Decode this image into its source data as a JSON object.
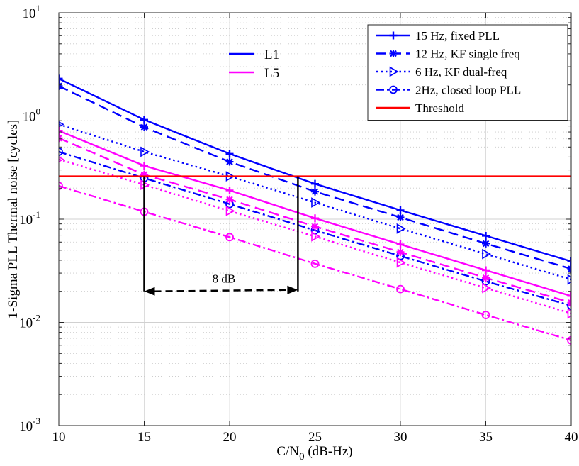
{
  "chart_data": {
    "type": "line",
    "xlabel": "C/N",
    "xlabel_sub": "0",
    "xlabel_suffix": " (dB-Hz)",
    "ylabel": "1-Sigma PLL  Thermal noise [cycles]",
    "xlim": [
      10,
      40
    ],
    "ylim": [
      0.001,
      10
    ],
    "yscale": "log",
    "grid": true,
    "x_ticks": [
      "10",
      "15",
      "20",
      "25",
      "30",
      "35",
      "40"
    ],
    "y_ticks": [
      {
        "base": "10",
        "exp": "-3",
        "value": 0.001
      },
      {
        "base": "10",
        "exp": "-2",
        "value": 0.01
      },
      {
        "base": "10",
        "exp": "-1",
        "value": 0.1
      },
      {
        "base": "10",
        "exp": "0",
        "value": 1
      },
      {
        "base": "10",
        "exp": "1",
        "value": 10
      }
    ],
    "x": [
      10,
      15,
      20,
      25,
      30,
      35,
      40
    ],
    "bands": [
      {
        "name": "L1",
        "color": "#0000ff"
      },
      {
        "name": "L5",
        "color": "#ff00ff"
      }
    ],
    "series": [
      {
        "name": "15 Hz, fixed PLL",
        "band": "L1",
        "color": "#0000ff",
        "dash": "solid",
        "marker": "plus",
        "values": [
          2.3,
          0.92,
          0.43,
          0.22,
          0.122,
          0.069,
          0.039
        ]
      },
      {
        "name": "12 Hz, KF single freq",
        "band": "L1",
        "color": "#0000ff",
        "dash": "dashed",
        "marker": "asterisk",
        "values": [
          1.95,
          0.78,
          0.36,
          0.185,
          0.104,
          0.058,
          0.033
        ]
      },
      {
        "name": "6 Hz, KF dual-freq",
        "band": "L1",
        "color": "#0000ff",
        "dash": "dotted",
        "marker": "triangle-right",
        "values": [
          0.83,
          0.45,
          0.26,
          0.145,
          0.081,
          0.046,
          0.026
        ]
      },
      {
        "name": "2Hz, closed loop PLL",
        "band": "L1",
        "color": "#0000ff",
        "dash": "dashdot",
        "marker": "circle",
        "values": [
          0.45,
          0.25,
          0.14,
          0.078,
          0.044,
          0.025,
          0.0145
        ]
      },
      {
        "name": "15 Hz, fixed PLL",
        "band": "L5",
        "color": "#ff00ff",
        "dash": "solid",
        "marker": "plus",
        "values": [
          0.72,
          0.33,
          0.19,
          0.102,
          0.057,
          0.032,
          0.018
        ]
      },
      {
        "name": "12 Hz, KF single freq",
        "band": "L5",
        "color": "#ff00ff",
        "dash": "dashed",
        "marker": "asterisk",
        "values": [
          0.61,
          0.27,
          0.155,
          0.085,
          0.048,
          0.027,
          0.0155
        ]
      },
      {
        "name": "6 Hz, KF dual-freq",
        "band": "L5",
        "color": "#ff00ff",
        "dash": "dotted",
        "marker": "triangle-right",
        "values": [
          0.38,
          0.215,
          0.12,
          0.068,
          0.038,
          0.0215,
          0.0122
        ]
      },
      {
        "name": "2Hz, closed loop PLL",
        "band": "L5",
        "color": "#ff00ff",
        "dash": "dashdot",
        "marker": "circle",
        "values": [
          0.21,
          0.118,
          0.067,
          0.037,
          0.021,
          0.0118,
          0.0067
        ]
      }
    ],
    "threshold": {
      "name": "Threshold",
      "value": 0.26,
      "color": "#ff0000"
    },
    "legend_position": "top-right",
    "legend": [
      {
        "label": "15 Hz, fixed PLL",
        "dash": "solid",
        "marker": "plus"
      },
      {
        "label": "12 Hz, KF single freq",
        "dash": "dashed",
        "marker": "asterisk"
      },
      {
        "label": "6 Hz, KF dual-freq",
        "dash": "dotted",
        "marker": "triangle-right"
      },
      {
        "label": "2Hz, closed loop PLL",
        "dash": "dashdot",
        "marker": "circle"
      },
      {
        "label": "Threshold",
        "dash": "solid",
        "marker": "none",
        "color": "#ff0000"
      }
    ],
    "annotation": {
      "text": "8 dB",
      "x_start": 15,
      "x_end": 24,
      "y": 0.02,
      "vline_top": 0.26
    }
  }
}
